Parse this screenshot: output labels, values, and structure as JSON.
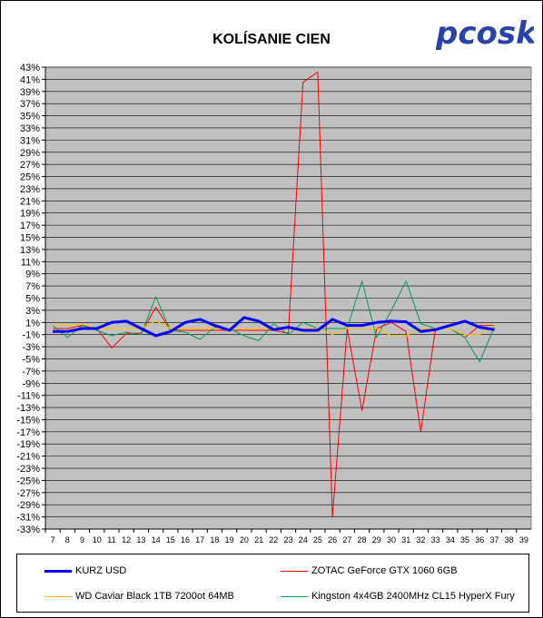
{
  "chart_data": {
    "type": "line",
    "title": "KOLÍSANIE CIEN",
    "logo_text": "pcosk",
    "x": [
      7,
      8,
      9,
      10,
      11,
      12,
      13,
      14,
      15,
      16,
      17,
      18,
      19,
      20,
      21,
      22,
      23,
      24,
      25,
      26,
      27,
      28,
      29,
      30,
      31,
      32,
      33,
      34,
      35,
      36,
      37,
      38,
      39
    ],
    "x_tick_labels": [
      "7",
      "8",
      "9",
      "10",
      "11",
      "12",
      "13",
      "14",
      "15",
      "16",
      "17",
      "18",
      "19",
      "20",
      "21",
      "22",
      "23",
      "24",
      "25",
      "26",
      "27",
      "28",
      "29",
      "30",
      "31",
      "32",
      "33",
      "34",
      "35",
      "36",
      "37",
      "38",
      "39"
    ],
    "ylim": [
      -33,
      43
    ],
    "y_tick_labels": [
      "43%",
      "41%",
      "39%",
      "37%",
      "35%",
      "33%",
      "31%",
      "29%",
      "27%",
      "25%",
      "23%",
      "21%",
      "19%",
      "17%",
      "15%",
      "13%",
      "11%",
      "9%",
      "7%",
      "5%",
      "3%",
      "1%",
      "-1%",
      "-3%",
      "-5%",
      "-7%",
      "-9%",
      "-11%",
      "-13%",
      "-15%",
      "-17%",
      "-19%",
      "-21%",
      "-23%",
      "-25%",
      "-27%",
      "-29%",
      "-31%",
      "-33%"
    ],
    "grid": true,
    "legend_position": "bottom",
    "series": [
      {
        "name": "KURZ USD",
        "color": "#0000ff",
        "width": 3,
        "values": [
          -0.5,
          -0.5,
          0,
          0,
          1,
          1.2,
          0,
          -1.2,
          -0.5,
          1,
          1.5,
          0.5,
          -0.3,
          1.8,
          1.2,
          -0.2,
          0.2,
          -0.3,
          -0.3,
          1.5,
          0.5,
          0.5,
          1,
          1.2,
          1.1,
          -0.5,
          -0.2,
          0.5,
          1.2,
          0.2,
          -0.2,
          null,
          null
        ]
      },
      {
        "name": "ZOTAC GeForce GTX 1060 6GB",
        "color": "#ff0000",
        "width": 1,
        "values": [
          0,
          0,
          0.5,
          0,
          -3.2,
          -0.8,
          -0.8,
          3.5,
          -0.3,
          -0.3,
          -0.3,
          -0.3,
          -0.3,
          -0.3,
          -0.3,
          -0.3,
          -0.8,
          40.5,
          42.2,
          -31,
          0,
          -13.5,
          0,
          1,
          -0.5,
          -17,
          0,
          0,
          -1.5,
          0.5,
          0.5,
          null,
          null
        ]
      },
      {
        "name": "WD Caviar Black 1TB 7200ot 64MB",
        "color": "#ffc000",
        "width": 1,
        "values": [
          0.5,
          0.5,
          0.7,
          0,
          0,
          0,
          0,
          1.3,
          0,
          0,
          0,
          0,
          0,
          0,
          0,
          0,
          0,
          0,
          0,
          -1,
          0,
          0,
          0,
          -1.2,
          -1.2,
          0,
          0,
          0,
          -1,
          -1,
          0.5,
          null,
          null
        ]
      },
      {
        "name": "Kingston 4x4GB 2400MHz CL15 HyperX Fury",
        "color": "#00a050",
        "width": 1,
        "values": [
          0.5,
          -1.5,
          0.5,
          -0.3,
          -1.2,
          -0.6,
          -1,
          5.2,
          -0.3,
          -0.6,
          -1.8,
          0.2,
          0,
          -1.2,
          -2,
          0.8,
          -1,
          1,
          0,
          0,
          0,
          7.8,
          -1.5,
          3,
          7.8,
          0.8,
          0,
          0,
          -1.5,
          -5.5,
          0.3,
          null,
          null
        ]
      }
    ]
  }
}
